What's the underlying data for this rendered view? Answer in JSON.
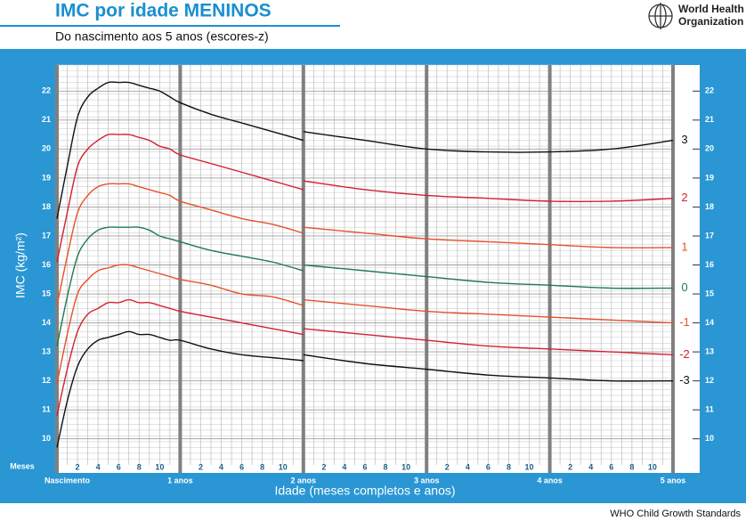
{
  "chart_data": {
    "type": "line",
    "title": "IMC por idade MENINOS",
    "subtitle": "Do nascimento aos 5 anos (escores-z)",
    "logo_lines": [
      "World Health",
      "Organization"
    ],
    "footer": "WHO Child Growth Standards",
    "xlabel": "Idade (meses completos e anos)",
    "ylabel": "IMC (kg/m²)",
    "x_unit_label": "Meses",
    "x": [
      0,
      1,
      2,
      3,
      4,
      5,
      6,
      7,
      8,
      9,
      10,
      11,
      12,
      15,
      18,
      21,
      24,
      24,
      24,
      30,
      36,
      42,
      48,
      54,
      60
    ],
    "xlim": [
      0,
      60
    ],
    "ylim": [
      9.1,
      22.9
    ],
    "yticks": [
      10,
      11,
      12,
      13,
      14,
      15,
      16,
      17,
      18,
      19,
      20,
      21,
      22
    ],
    "xticks": [
      2,
      4,
      6,
      8,
      10,
      {
        "value": 14,
        "label": "2"
      },
      {
        "value": 16,
        "label": "4"
      },
      {
        "value": 18,
        "label": "6"
      },
      {
        "value": 20,
        "label": "8"
      },
      {
        "value": 22,
        "label": "10"
      },
      {
        "value": 26,
        "label": "2"
      },
      {
        "value": 28,
        "label": "4"
      },
      {
        "value": 30,
        "label": "6"
      },
      {
        "value": 32,
        "label": "8"
      },
      {
        "value": 34,
        "label": "10"
      },
      {
        "value": 38,
        "label": "2"
      },
      {
        "value": 40,
        "label": "4"
      },
      {
        "value": 42,
        "label": "6"
      },
      {
        "value": 44,
        "label": "8"
      },
      {
        "value": 46,
        "label": "10"
      },
      {
        "value": 50,
        "label": "2"
      },
      {
        "value": 52,
        "label": "4"
      },
      {
        "value": 54,
        "label": "6"
      },
      {
        "value": 56,
        "label": "8"
      },
      {
        "value": 58,
        "label": "10"
      }
    ],
    "year_ticks": [
      {
        "value": 0,
        "label": "Nascimento"
      },
      {
        "value": 12,
        "label": "1 anos"
      },
      {
        "value": 24,
        "label": "2 anos"
      },
      {
        "value": 36,
        "label": "3 anos"
      },
      {
        "value": 48,
        "label": "4 anos"
      },
      {
        "value": 60,
        "label": "5 anos"
      }
    ],
    "x_minor_step": 1,
    "y_minor_step": 0.2,
    "grid": true,
    "series": [
      {
        "name": "3",
        "color": "#111111",
        "values": [
          17.6,
          19.4,
          21.1,
          21.8,
          22.1,
          22.3,
          22.3,
          22.3,
          22.2,
          22.1,
          22.0,
          21.8,
          21.6,
          21.2,
          20.9,
          20.6,
          20.3,
          null,
          20.6,
          20.3,
          20.0,
          19.9,
          19.9,
          20.0,
          20.3
        ]
      },
      {
        "name": "2",
        "color": "#d2202e",
        "values": [
          16.1,
          17.8,
          19.4,
          20.0,
          20.3,
          20.5,
          20.5,
          20.5,
          20.4,
          20.3,
          20.1,
          20.0,
          19.8,
          19.5,
          19.2,
          18.9,
          18.6,
          null,
          18.9,
          18.6,
          18.4,
          18.3,
          18.2,
          18.2,
          18.3
        ]
      },
      {
        "name": "1",
        "color": "#e8502a",
        "values": [
          14.6,
          16.3,
          17.8,
          18.4,
          18.7,
          18.8,
          18.8,
          18.8,
          18.7,
          18.6,
          18.5,
          18.4,
          18.2,
          17.9,
          17.6,
          17.4,
          17.1,
          null,
          17.3,
          17.1,
          16.9,
          16.8,
          16.7,
          16.6,
          16.6
        ]
      },
      {
        "name": "0",
        "color": "#1e7a52",
        "values": [
          13.2,
          14.9,
          16.3,
          16.9,
          17.2,
          17.3,
          17.3,
          17.3,
          17.3,
          17.2,
          17.0,
          16.9,
          16.8,
          16.5,
          16.3,
          16.1,
          15.8,
          null,
          16.0,
          15.8,
          15.6,
          15.4,
          15.3,
          15.2,
          15.2
        ]
      },
      {
        "name": "-1",
        "color": "#e8502a",
        "values": [
          11.9,
          13.6,
          15.0,
          15.5,
          15.8,
          15.9,
          16.0,
          16.0,
          15.9,
          15.8,
          15.7,
          15.6,
          15.5,
          15.3,
          15.0,
          14.9,
          14.6,
          null,
          14.8,
          14.6,
          14.4,
          14.3,
          14.2,
          14.1,
          14.0
        ]
      },
      {
        "name": "-2",
        "color": "#d2202e",
        "values": [
          10.8,
          12.4,
          13.7,
          14.3,
          14.5,
          14.7,
          14.7,
          14.8,
          14.7,
          14.7,
          14.6,
          14.5,
          14.4,
          14.2,
          14.0,
          13.8,
          13.6,
          null,
          13.8,
          13.6,
          13.4,
          13.2,
          13.1,
          13.0,
          12.9
        ]
      },
      {
        "name": "-3",
        "color": "#111111",
        "values": [
          9.7,
          11.3,
          12.5,
          13.1,
          13.4,
          13.5,
          13.6,
          13.7,
          13.6,
          13.6,
          13.5,
          13.4,
          13.4,
          13.1,
          12.9,
          12.8,
          12.7,
          null,
          12.9,
          12.6,
          12.4,
          12.2,
          12.1,
          12.0,
          12.0
        ]
      }
    ]
  }
}
